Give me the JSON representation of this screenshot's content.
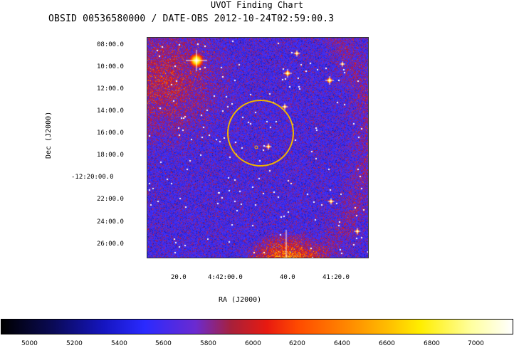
{
  "title": "UVOT Finding Chart",
  "subtitle": "OBSID 00536580000 / DATE-OBS 2012-10-24T02:59:00.3",
  "y_axis": {
    "label": "Dec (J2000)",
    "ticks": [
      "08:00.0",
      "10:00.0",
      "12:00.0",
      "14:00.0",
      "16:00.0",
      "18:00.0",
      "-12:20:00.0",
      "22:00.0",
      "24:00.0",
      "26:00.0"
    ]
  },
  "x_axis": {
    "label": "RA (J2000)",
    "ticks": [
      "20.0",
      "4:42:00.0",
      "40.0",
      "41:20.0"
    ]
  },
  "colorbar": {
    "ticks": [
      "5000",
      "5200",
      "5400",
      "5600",
      "5800",
      "6000",
      "6200",
      "6400",
      "6600",
      "6800",
      "7000"
    ]
  },
  "colors": {
    "circle": "#f0b400",
    "background": "#2020c8"
  }
}
